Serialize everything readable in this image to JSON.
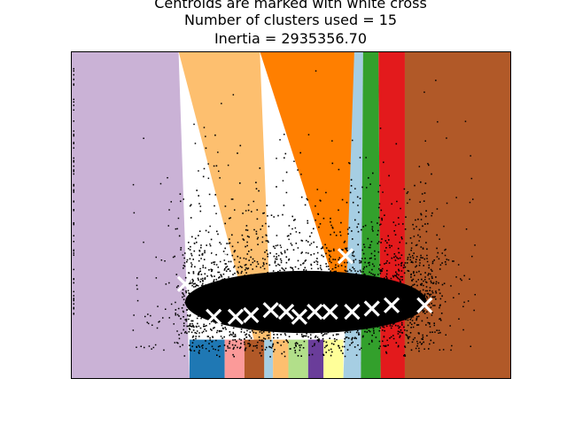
{
  "chart_data": {
    "type": "scatter",
    "title_lines": [
      "Centroids are marked with white cross",
      "Number of clusters used = 15",
      "Inertia = 2935356.70"
    ],
    "xlabel": "",
    "ylabel": "",
    "xticks": false,
    "yticks": false,
    "xlim": [
      0,
      10
    ],
    "ylim": [
      0,
      10
    ],
    "grid": false,
    "point_color": "#000000",
    "centroid_marker": "x",
    "centroid_color": "#ffffff",
    "cluster_color_cycle": [
      "#a6cee3",
      "#1f78b4",
      "#b2df8a",
      "#33a02c",
      "#fb9a99",
      "#e31a1c",
      "#fdbf6f",
      "#ff7f00",
      "#cab2d6",
      "#6a3d9a",
      "#ffff99",
      "#b15928"
    ],
    "regions": [
      {
        "color": "#cab2d6",
        "top": [
          0.0,
          2.45
        ],
        "bottom": [
          0.0,
          2.7
        ]
      },
      {
        "color": "#fdbf6f",
        "top": [
          2.45,
          4.3
        ],
        "bottom": [
          4.4,
          4.6
        ]
      },
      {
        "color": "#ff7f00",
        "top": [
          4.3,
          6.45
        ],
        "bottom": [
          6.7,
          6.7
        ]
      },
      {
        "color": "#a6cee3",
        "top": [
          6.45,
          6.65
        ],
        "bottom": [
          6.2,
          6.6
        ]
      },
      {
        "color": "#33a02c",
        "top": [
          6.65,
          7.0
        ],
        "bottom": [
          6.6,
          7.05
        ]
      },
      {
        "color": "#e31a1c",
        "top": [
          7.0,
          7.6
        ],
        "bottom": [
          7.05,
          7.6
        ]
      },
      {
        "color": "#b15928",
        "top": [
          7.6,
          10.0
        ],
        "bottom": [
          7.6,
          10.0
        ]
      },
      {
        "color": "#1f78b4",
        "top": [
          2.7,
          3.5
        ],
        "bottom": [
          2.7,
          3.5
        ]
      },
      {
        "color": "#fb9a99",
        "top": [
          3.5,
          3.95
        ],
        "bottom": [
          3.5,
          3.95
        ]
      },
      {
        "color": "#b15928",
        "top": [
          3.95,
          4.4
        ],
        "bottom": [
          3.95,
          4.4
        ]
      },
      {
        "color": "#a6cee3",
        "top": [
          4.4,
          4.6
        ],
        "bottom": [
          4.4,
          4.6
        ]
      },
      {
        "color": "#fdbf6f",
        "top": [
          4.6,
          4.95
        ],
        "bottom": [
          4.6,
          4.95
        ]
      },
      {
        "color": "#b2df8a",
        "top": [
          4.95,
          5.4
        ],
        "bottom": [
          4.95,
          5.4
        ]
      },
      {
        "color": "#6a3d9a",
        "top": [
          5.4,
          5.75
        ],
        "bottom": [
          5.4,
          5.75
        ]
      },
      {
        "color": "#ffff99",
        "top": [
          5.75,
          6.2
        ],
        "bottom": [
          5.75,
          6.2
        ]
      }
    ],
    "centroids": [
      {
        "x": 3.35,
        "y": 3.95
      },
      {
        "x": 6.25,
        "y": 3.75
      },
      {
        "x": 2.6,
        "y": 2.9
      },
      {
        "x": 3.25,
        "y": 1.9
      },
      {
        "x": 3.75,
        "y": 1.9
      },
      {
        "x": 4.1,
        "y": 1.95
      },
      {
        "x": 4.55,
        "y": 2.1
      },
      {
        "x": 4.9,
        "y": 2.05
      },
      {
        "x": 5.2,
        "y": 1.9
      },
      {
        "x": 5.55,
        "y": 2.05
      },
      {
        "x": 5.9,
        "y": 2.05
      },
      {
        "x": 6.4,
        "y": 2.05
      },
      {
        "x": 6.85,
        "y": 2.15
      },
      {
        "x": 7.3,
        "y": 2.25
      },
      {
        "x": 8.05,
        "y": 2.25
      }
    ]
  }
}
